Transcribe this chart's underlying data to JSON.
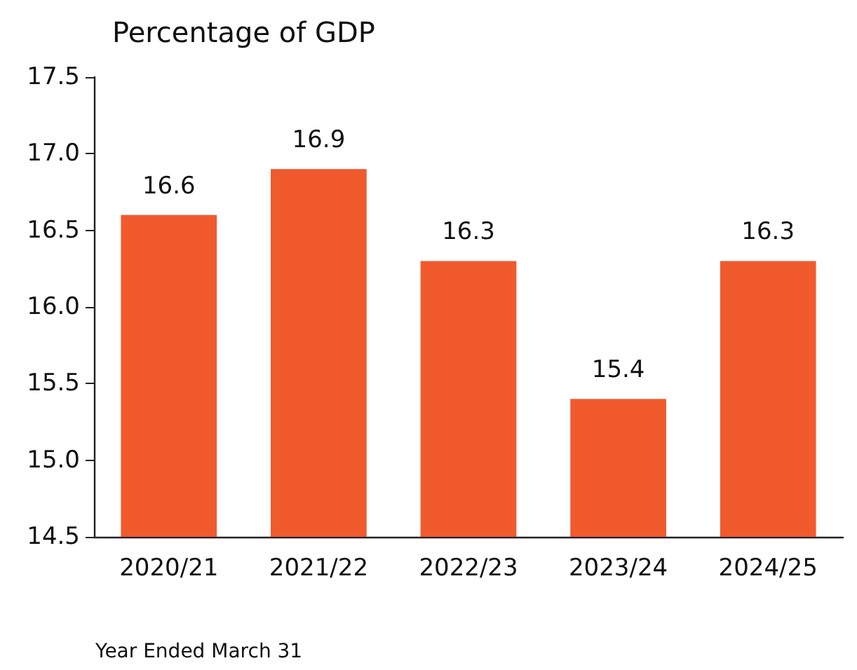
{
  "chart_data": {
    "type": "bar",
    "title": "Percentage of GDP",
    "categories": [
      "2020/21",
      "2021/22",
      "2022/23",
      "2023/24",
      "2024/25"
    ],
    "values": [
      16.6,
      16.9,
      16.3,
      15.4,
      16.3
    ],
    "color": "#f05a2d",
    "ylim": [
      14.5,
      17.5
    ],
    "yticks": [
      14.5,
      {
        "value": 15,
        "label": "15.0"
      },
      15.5,
      {
        "value": 16,
        "label": "16.0"
      },
      16.5,
      {
        "value": 17,
        "label": "17.0"
      },
      17.5
    ],
    "data_labels": true,
    "grid": false,
    "annotations": [
      "Year Ended March 31"
    ]
  }
}
